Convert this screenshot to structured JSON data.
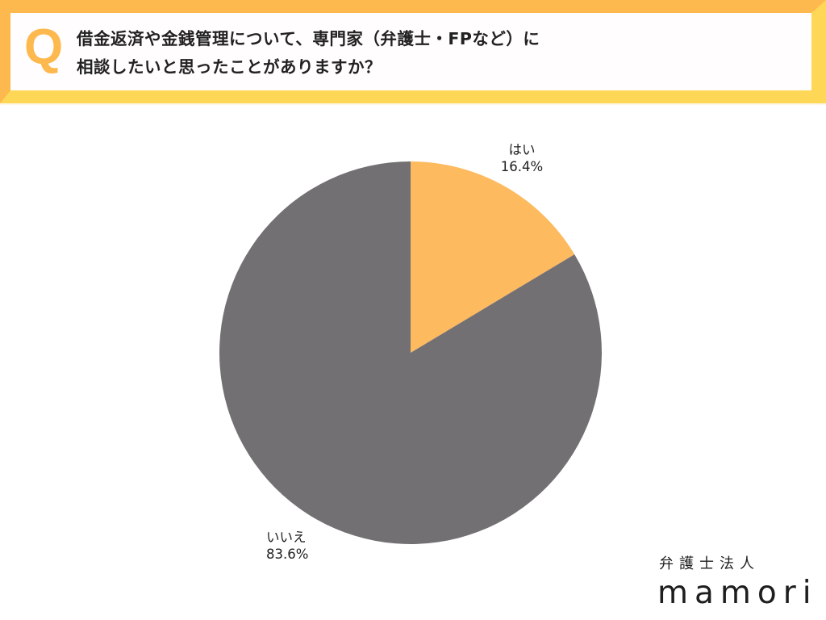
{
  "banner": {
    "q_mark": "Q",
    "question_line1": "借金返済や金銭管理について、専門家（弁護士・FPなど）に",
    "question_line2": "相談したいと思ったことがありますか？",
    "colors": {
      "top_left": "#fdb84e",
      "bottom_right": "#fed756",
      "inner": "#fffdfe"
    }
  },
  "chart_data": {
    "type": "pie",
    "title": "借金返済や金銭管理について、専門家（弁護士・FPなど）に相談したいと思ったことがありますか？",
    "categories": [
      "はい",
      "いいえ"
    ],
    "values": [
      16.4,
      83.6
    ],
    "unit": "%",
    "colors": [
      "#fdba5e",
      "#737074"
    ],
    "start_angle": "12 o'clock, clockwise",
    "labels": [
      {
        "name": "はい",
        "value_text": "16.4%"
      },
      {
        "name": "いいえ",
        "value_text": "83.6%"
      }
    ],
    "legend": "none (outside data labels)"
  },
  "logo": {
    "subtitle": "弁護士法人",
    "name": "mamori"
  }
}
